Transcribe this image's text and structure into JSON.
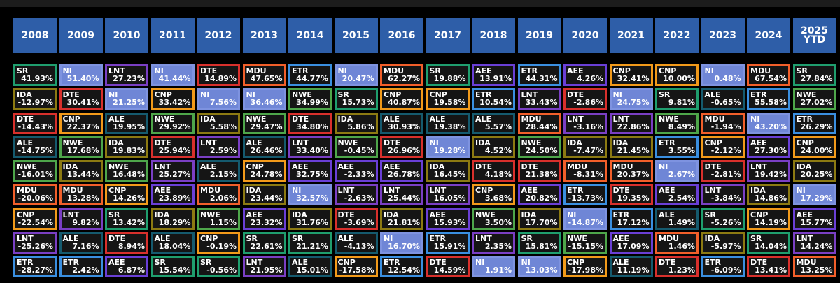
{
  "colors": {
    "SR": "#1f9e6e",
    "NI": "#7e93e0",
    "LNT": "#7a3fc4",
    "DTE": "#d8302c",
    "MDU": "#f25f2a",
    "ETR": "#3a8fe0",
    "AEE": "#6a3fd6",
    "CNP": "#f29a1a",
    "IDA": "#8c7a12",
    "ALE": "#155a6e",
    "NWE": "#4ea64a"
  },
  "chart_data": {
    "type": "table",
    "title": "",
    "columns": [
      "2008",
      "2009",
      "2010",
      "2011",
      "2012",
      "2013",
      "2014",
      "2015",
      "2016",
      "2017",
      "2018",
      "2019",
      "2020",
      "2021",
      "2022",
      "2023",
      "2024",
      "2025\nYTD"
    ],
    "rows": [
      [
        [
          "SR",
          "41.93%"
        ],
        [
          "NI",
          "51.40%"
        ],
        [
          "LNT",
          "27.23%"
        ],
        [
          "NI",
          "41.44%"
        ],
        [
          "DTE",
          "14.89%"
        ],
        [
          "MDU",
          "47.65%"
        ],
        [
          "ETR",
          "44.77%"
        ],
        [
          "NI",
          "20.47%"
        ],
        [
          "MDU",
          "62.27%"
        ],
        [
          "SR",
          "19.88%"
        ],
        [
          "AEE",
          "13.91%"
        ],
        [
          "ETR",
          "44.31%"
        ],
        [
          "AEE",
          "4.26%"
        ],
        [
          "CNP",
          "32.41%"
        ],
        [
          "CNP",
          "10.00%"
        ],
        [
          "NI",
          "0.48%"
        ],
        [
          "MDU",
          "67.54%"
        ],
        [
          "SR",
          "27.84%"
        ]
      ],
      [
        [
          "IDA",
          "-12.97%"
        ],
        [
          "DTE",
          "30.41%"
        ],
        [
          "NI",
          "21.25%"
        ],
        [
          "CNP",
          "33.42%"
        ],
        [
          "NI",
          "7.56%"
        ],
        [
          "NI",
          "36.46%"
        ],
        [
          "NWE",
          "34.99%"
        ],
        [
          "SR",
          "15.73%"
        ],
        [
          "CNP",
          "40.87%"
        ],
        [
          "CNP",
          "19.58%"
        ],
        [
          "ETR",
          "10.54%"
        ],
        [
          "LNT",
          "33.43%"
        ],
        [
          "DTE",
          "-2.86%"
        ],
        [
          "NI",
          "24.75%"
        ],
        [
          "SR",
          "9.81%"
        ],
        [
          "ALE",
          "-0.65%"
        ],
        [
          "ETR",
          "55.58%"
        ],
        [
          "NWE",
          "27.02%"
        ]
      ],
      [
        [
          "DTE",
          "-14.43%"
        ],
        [
          "CNP",
          "22.37%"
        ],
        [
          "ALE",
          "19.95%"
        ],
        [
          "NWE",
          "29.92%"
        ],
        [
          "IDA",
          "5.58%"
        ],
        [
          "NWE",
          "29.47%"
        ],
        [
          "DTE",
          "34.80%"
        ],
        [
          "IDA",
          "5.86%"
        ],
        [
          "ALE",
          "30.93%"
        ],
        [
          "ALE",
          "19.38%"
        ],
        [
          "ALE",
          "5.57%"
        ],
        [
          "MDU",
          "28.44%"
        ],
        [
          "LNT",
          "-3.16%"
        ],
        [
          "LNT",
          "22.86%"
        ],
        [
          "NWE",
          "8.49%"
        ],
        [
          "MDU",
          "-1.94%"
        ],
        [
          "NI",
          "43.20%"
        ],
        [
          "ETR",
          "26.29%"
        ]
      ],
      [
        [
          "ALE",
          "-14.75%"
        ],
        [
          "NWE",
          "17.68%"
        ],
        [
          "IDA",
          "19.83%"
        ],
        [
          "DTE",
          "25.94%"
        ],
        [
          "LNT",
          "2.59%"
        ],
        [
          "ALE",
          "26.46%"
        ],
        [
          "LNT",
          "33.40%"
        ],
        [
          "NWE",
          "-0.45%"
        ],
        [
          "DTE",
          "26.96%"
        ],
        [
          "NI",
          "19.28%"
        ],
        [
          "IDA",
          "4.52%"
        ],
        [
          "NWE",
          "24.50%"
        ],
        [
          "IDA",
          "-7.47%"
        ],
        [
          "IDA",
          "21.45%"
        ],
        [
          "ETR",
          "3.55%"
        ],
        [
          "CNP",
          "-2.12%"
        ],
        [
          "AEE",
          "27.30%"
        ],
        [
          "CNP",
          "24.00%"
        ]
      ],
      [
        [
          "NWE",
          "-16.01%"
        ],
        [
          "IDA",
          "13.44%"
        ],
        [
          "NWE",
          "16.48%"
        ],
        [
          "LNT",
          "25.27%"
        ],
        [
          "ALE",
          "2.15%"
        ],
        [
          "CNP",
          "24.78%"
        ],
        [
          "AEE",
          "32.75%"
        ],
        [
          "AEE",
          "-2.33%"
        ],
        [
          "AEE",
          "26.78%"
        ],
        [
          "IDA",
          "16.45%"
        ],
        [
          "DTE",
          "4.18%"
        ],
        [
          "DTE",
          "21.38%"
        ],
        [
          "MDU",
          "-8.31%"
        ],
        [
          "MDU",
          "20.37%"
        ],
        [
          "NI",
          "2.67%"
        ],
        [
          "DTE",
          "-2.81%"
        ],
        [
          "LNT",
          "19.42%"
        ],
        [
          "IDA",
          "20.25%"
        ]
      ],
      [
        [
          "MDU",
          "-20.06%"
        ],
        [
          "MDU",
          "13.28%"
        ],
        [
          "CNP",
          "14.26%"
        ],
        [
          "AEE",
          "23.89%"
        ],
        [
          "MDU",
          "2.06%"
        ],
        [
          "IDA",
          "23.44%"
        ],
        [
          "NI",
          "32.57%"
        ],
        [
          "LNT",
          "-2.63%"
        ],
        [
          "LNT",
          "25.44%"
        ],
        [
          "LNT",
          "16.05%"
        ],
        [
          "CNP",
          "3.68%"
        ],
        [
          "AEE",
          "20.82%"
        ],
        [
          "ETR",
          "-13.73%"
        ],
        [
          "DTE",
          "19.35%"
        ],
        [
          "AEE",
          "2.54%"
        ],
        [
          "LNT",
          "-3.84%"
        ],
        [
          "IDA",
          "14.86%"
        ],
        [
          "NI",
          "17.29%"
        ]
      ],
      [
        [
          "CNP",
          "-22.54%"
        ],
        [
          "LNT",
          "9.82%"
        ],
        [
          "SR",
          "13.42%"
        ],
        [
          "IDA",
          "18.29%"
        ],
        [
          "NWE",
          "1.15%"
        ],
        [
          "AEE",
          "23.32%"
        ],
        [
          "IDA",
          "31.76%"
        ],
        [
          "DTE",
          "-3.69%"
        ],
        [
          "IDA",
          "21.81%"
        ],
        [
          "AEE",
          "15.93%"
        ],
        [
          "NWE",
          "3.50%"
        ],
        [
          "IDA",
          "17.70%"
        ],
        [
          "NI",
          "-14.87%"
        ],
        [
          "ETR",
          "17.12%"
        ],
        [
          "ALE",
          "1.49%"
        ],
        [
          "SR",
          "-5.26%"
        ],
        [
          "CNP",
          "14.19%"
        ],
        [
          "AEE",
          "15.77%"
        ]
      ],
      [
        [
          "LNT",
          "-25.26%"
        ],
        [
          "ALE",
          "7.16%"
        ],
        [
          "DTE",
          "8.94%"
        ],
        [
          "ALE",
          "18.04%"
        ],
        [
          "CNP",
          "-0.19%"
        ],
        [
          "SR",
          "22.61%"
        ],
        [
          "SR",
          "21.21%"
        ],
        [
          "ALE",
          "-4.13%"
        ],
        [
          "NI",
          "16.70%"
        ],
        [
          "ETR",
          "15.91%"
        ],
        [
          "LNT",
          "2.35%"
        ],
        [
          "SR",
          "15.81%"
        ],
        [
          "NWE",
          "-15.15%"
        ],
        [
          "AEE",
          "17.09%"
        ],
        [
          "MDU",
          "1.46%"
        ],
        [
          "IDA",
          "-5.97%"
        ],
        [
          "SR",
          "14.04%"
        ],
        [
          "LNT",
          "14.24%"
        ]
      ],
      [
        [
          "ETR",
          "-28.27%"
        ],
        [
          "ETR",
          "2.42%"
        ],
        [
          "AEE",
          "6.87%"
        ],
        [
          "SR",
          "15.54%"
        ],
        [
          "SR",
          "-0.56%"
        ],
        [
          "LNT",
          "21.95%"
        ],
        [
          "ALE",
          "15.01%"
        ],
        [
          "CNP",
          "-17.58%"
        ],
        [
          "ETR",
          "12.54%"
        ],
        [
          "DTE",
          "14.59%"
        ],
        [
          "NI",
          "1.91%"
        ],
        [
          "NI",
          "13.03%"
        ],
        [
          "CNP",
          "-17.98%"
        ],
        [
          "ALE",
          "11.19%"
        ],
        [
          "DTE",
          "1.23%"
        ],
        [
          "ETR",
          "-6.09%"
        ],
        [
          "DTE",
          "13.41%"
        ],
        [
          "MDU",
          "13.25%"
        ]
      ]
    ]
  }
}
